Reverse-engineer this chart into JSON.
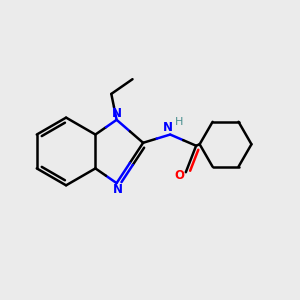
{
  "background_color": "#ebebeb",
  "bond_color": "#000000",
  "N_color": "#0000ff",
  "O_color": "#ff0000",
  "H_color": "#4a9090",
  "bond_width": 1.8,
  "figsize": [
    3.0,
    3.0
  ],
  "dpi": 100,
  "xlim": [
    0,
    10
  ],
  "ylim": [
    0,
    10
  ]
}
